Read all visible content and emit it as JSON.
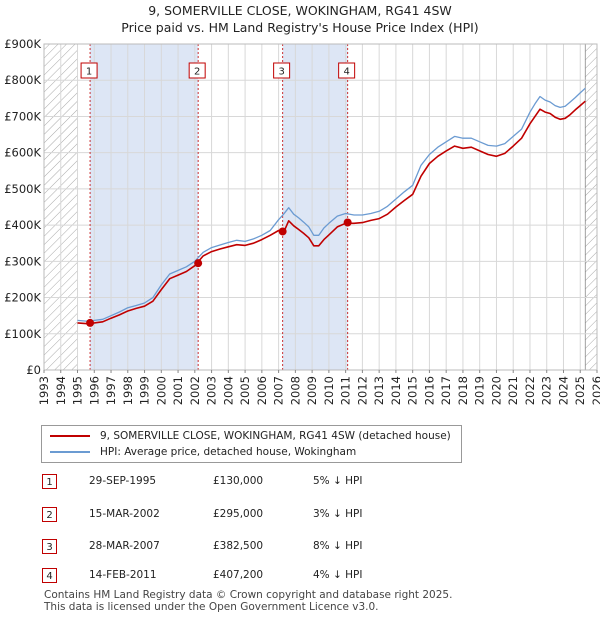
{
  "title": {
    "line1": "9, SOMERVILLE CLOSE, WOKINGHAM, RG41 4SW",
    "line2": "Price paid vs. HM Land Registry's House Price Index (HPI)"
  },
  "colors": {
    "price_paid": "#c00000",
    "hpi": "#6b9bd2",
    "shade": "#dde6f5",
    "hatch": "#a9a9a9"
  },
  "chart_data": {
    "type": "line",
    "x_range": [
      1993,
      2026
    ],
    "ylim": [
      0,
      900000
    ],
    "y_ticks": [
      {
        "value": 0,
        "label": "£0"
      },
      {
        "value": 100000,
        "label": "£100K"
      },
      {
        "value": 200000,
        "label": "£200K"
      },
      {
        "value": 300000,
        "label": "£300K"
      },
      {
        "value": 400000,
        "label": "£400K"
      },
      {
        "value": 500000,
        "label": "£500K"
      },
      {
        "value": 600000,
        "label": "£600K"
      },
      {
        "value": 700000,
        "label": "£700K"
      },
      {
        "value": 800000,
        "label": "£800K"
      },
      {
        "value": 900000,
        "label": "£900K"
      }
    ],
    "x_ticks": [
      1993,
      1994,
      1995,
      1996,
      1997,
      1998,
      1999,
      2000,
      2001,
      2002,
      2003,
      2004,
      2005,
      2006,
      2007,
      2008,
      2009,
      2010,
      2011,
      2012,
      2013,
      2014,
      2015,
      2016,
      2017,
      2018,
      2019,
      2020,
      2021,
      2022,
      2023,
      2024,
      2025,
      2026
    ],
    "data_start": 1995.0,
    "data_end": 2025.3,
    "shaded_periods": [
      [
        1995.75,
        2002.2
      ],
      [
        2007.24,
        2011.12
      ]
    ],
    "series": [
      {
        "name": "HPI: Average price, detached house, Wokingham",
        "x": [
          1995.0,
          1995.5,
          1996.0,
          1996.5,
          1997.0,
          1997.5,
          1998.0,
          1998.5,
          1999.0,
          1999.5,
          2000.0,
          2000.5,
          2001.0,
          2001.5,
          2002.0,
          2002.5,
          2003.0,
          2003.5,
          2004.0,
          2004.5,
          2005.0,
          2005.5,
          2006.0,
          2006.5,
          2007.0,
          2007.3,
          2007.6,
          2007.9,
          2008.2,
          2008.5,
          2008.8,
          2009.1,
          2009.4,
          2009.7,
          2010.0,
          2010.5,
          2011.0,
          2011.5,
          2012.0,
          2012.5,
          2013.0,
          2013.5,
          2014.0,
          2014.5,
          2015.0,
          2015.5,
          2016.0,
          2016.5,
          2017.0,
          2017.5,
          2018.0,
          2018.5,
          2019.0,
          2019.5,
          2020.0,
          2020.5,
          2021.0,
          2021.5,
          2022.0,
          2022.3,
          2022.6,
          2022.9,
          2023.2,
          2023.5,
          2023.8,
          2024.1,
          2024.4,
          2024.7,
          2025.0,
          2025.3
        ],
        "values": [
          137000,
          135000,
          137000,
          140000,
          150000,
          160000,
          172000,
          178000,
          185000,
          200000,
          235000,
          265000,
          275000,
          285000,
          300000,
          325000,
          338000,
          345000,
          352000,
          358000,
          355000,
          362000,
          372000,
          385000,
          415000,
          430000,
          448000,
          430000,
          420000,
          408000,
          395000,
          372000,
          372000,
          392000,
          405000,
          425000,
          432000,
          428000,
          428000,
          432000,
          438000,
          452000,
          472000,
          492000,
          510000,
          565000,
          595000,
          615000,
          630000,
          645000,
          640000,
          640000,
          630000,
          620000,
          618000,
          625000,
          645000,
          665000,
          712000,
          735000,
          755000,
          745000,
          740000,
          730000,
          725000,
          728000,
          740000,
          752000,
          765000,
          778000
        ]
      },
      {
        "name": "9, SOMERVILLE CLOSE, WOKINGHAM, RG41 4SW (detached house)",
        "x": [
          1995.0,
          1995.5,
          1996.0,
          1996.5,
          1997.0,
          1997.5,
          1998.0,
          1998.5,
          1999.0,
          1999.5,
          2000.0,
          2000.5,
          2001.0,
          2001.5,
          2002.0,
          2002.5,
          2003.0,
          2003.5,
          2004.0,
          2004.5,
          2005.0,
          2005.5,
          2006.0,
          2006.5,
          2007.0,
          2007.3,
          2007.6,
          2007.9,
          2008.2,
          2008.5,
          2008.8,
          2009.1,
          2009.4,
          2009.7,
          2010.0,
          2010.5,
          2011.0,
          2011.5,
          2012.0,
          2012.5,
          2013.0,
          2013.5,
          2014.0,
          2014.5,
          2015.0,
          2015.5,
          2016.0,
          2016.5,
          2017.0,
          2017.5,
          2018.0,
          2018.5,
          2019.0,
          2019.5,
          2020.0,
          2020.5,
          2021.0,
          2021.5,
          2022.0,
          2022.3,
          2022.6,
          2022.9,
          2023.2,
          2023.5,
          2023.8,
          2024.1,
          2024.4,
          2024.7,
          2025.0,
          2025.3
        ],
        "values": [
          130000,
          128000,
          130000,
          133000,
          143000,
          152000,
          163000,
          170000,
          176000,
          190000,
          222000,
          252000,
          262000,
          272000,
          288000,
          315000,
          327000,
          334000,
          340000,
          346000,
          344000,
          350000,
          360000,
          372000,
          385000,
          380000,
          412000,
          398000,
          388000,
          377000,
          365000,
          343000,
          343000,
          360000,
          373000,
          395000,
          405000,
          405000,
          407000,
          413000,
          418000,
          430000,
          450000,
          468000,
          485000,
          535000,
          570000,
          590000,
          605000,
          618000,
          612000,
          615000,
          605000,
          595000,
          590000,
          598000,
          618000,
          640000,
          680000,
          700000,
          720000,
          712000,
          708000,
          698000,
          692000,
          695000,
          705000,
          718000,
          730000,
          742000
        ]
      }
    ],
    "sales": [
      {
        "id": "1",
        "x": 1995.75,
        "value": 130000
      },
      {
        "id": "2",
        "x": 2002.2,
        "value": 295000
      },
      {
        "id": "3",
        "x": 2007.24,
        "value": 382500
      },
      {
        "id": "4",
        "x": 2011.12,
        "value": 407200
      }
    ]
  },
  "legend": {
    "price_paid_label": "9, SOMERVILLE CLOSE, WOKINGHAM, RG41 4SW (detached house)",
    "hpi_label": "HPI: Average price, detached house, Wokingham"
  },
  "sales_table": [
    {
      "id": "1",
      "date": "29-SEP-1995",
      "price": "£130,000",
      "hpi": "5% ↓ HPI"
    },
    {
      "id": "2",
      "date": "15-MAR-2002",
      "price": "£295,000",
      "hpi": "3% ↓ HPI"
    },
    {
      "id": "3",
      "date": "28-MAR-2007",
      "price": "£382,500",
      "hpi": "8% ↓ HPI"
    },
    {
      "id": "4",
      "date": "14-FEB-2011",
      "price": "£407,200",
      "hpi": "4% ↓ HPI"
    }
  ],
  "footer": {
    "line1": "Contains HM Land Registry data © Crown copyright and database right 2025.",
    "line2": "This data is licensed under the Open Government Licence v3.0."
  }
}
